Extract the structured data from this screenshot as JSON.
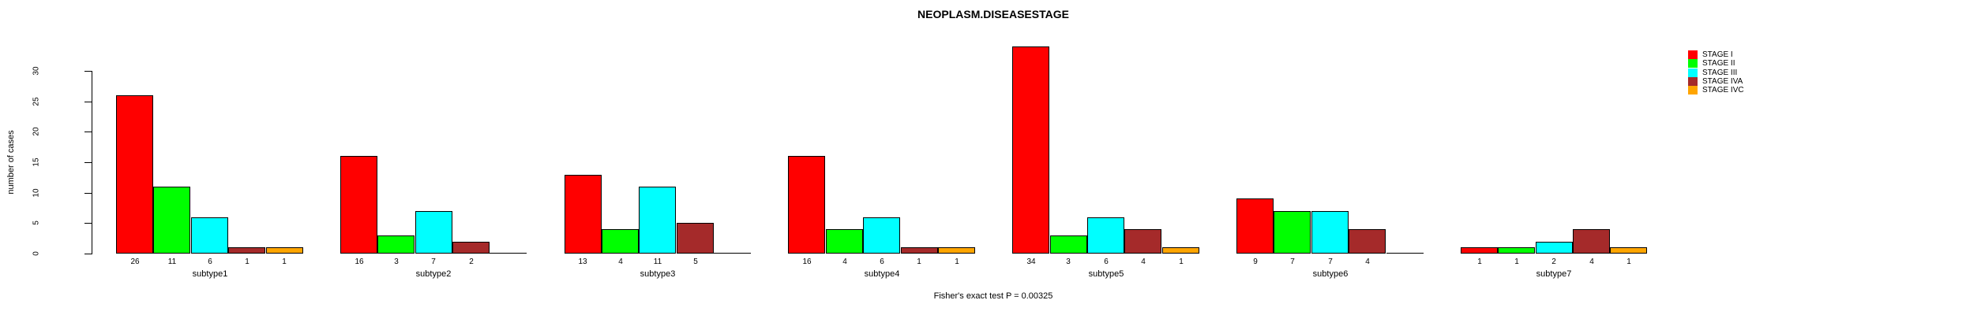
{
  "title": "NEOPLASM.DISEASESTAGE",
  "caption": "Fisher's exact test P = 0.00325",
  "y_axis": {
    "label": "number of cases",
    "ticks": [
      0,
      5,
      10,
      15,
      20,
      25,
      30
    ]
  },
  "legend": {
    "position": "right",
    "items": [
      {
        "label": "STAGE I",
        "color": "#FF0000"
      },
      {
        "label": "STAGE II",
        "color": "#00FF00"
      },
      {
        "label": "STAGE III",
        "color": "#00FFFF"
      },
      {
        "label": "STAGE IVA",
        "color": "#A52A2A"
      },
      {
        "label": "STAGE IVC",
        "color": "#FFA500"
      }
    ]
  },
  "chart_data": {
    "type": "bar",
    "title": "NEOPLASM.DISEASESTAGE",
    "xlabel": "",
    "ylabel": "number of cases",
    "ylim": [
      0,
      34
    ],
    "yticks": [
      0,
      5,
      10,
      15,
      20,
      25,
      30
    ],
    "grid": false,
    "legend_position": "right",
    "annotation": "Fisher's exact test P = 0.00325",
    "categories": [
      "subtype1",
      "subtype2",
      "subtype3",
      "subtype4",
      "subtype5",
      "subtype6",
      "subtype7"
    ],
    "series": [
      {
        "name": "STAGE I",
        "color": "#FF0000",
        "values": [
          26,
          16,
          13,
          16,
          34,
          9,
          1
        ]
      },
      {
        "name": "STAGE II",
        "color": "#00FF00",
        "values": [
          11,
          3,
          4,
          4,
          3,
          7,
          1
        ]
      },
      {
        "name": "STAGE III",
        "color": "#00FFFF",
        "values": [
          6,
          7,
          11,
          6,
          6,
          7,
          2
        ]
      },
      {
        "name": "STAGE IVA",
        "color": "#A52A2A",
        "values": [
          1,
          2,
          5,
          1,
          4,
          4,
          4
        ]
      },
      {
        "name": "STAGE IVC",
        "color": "#FFA500",
        "values": [
          1,
          0,
          0,
          1,
          1,
          0,
          1
        ]
      }
    ],
    "bar_value_labels_shown_for_nonzero_only": true
  }
}
